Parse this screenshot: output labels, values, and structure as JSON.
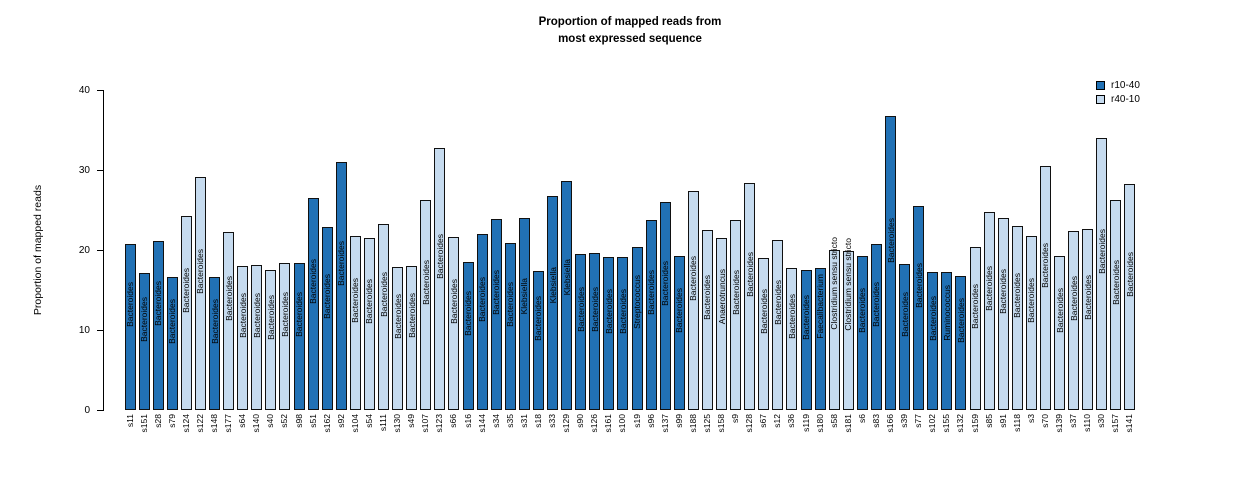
{
  "title": "Proportion of mapped reads from\nmost expressed sequence",
  "y_axis": {
    "label": "Proportion of mapped reads",
    "ticks": [
      0,
      10,
      20,
      30,
      40
    ]
  },
  "legend": [
    {
      "label": "r10-40",
      "color": "#2171b5"
    },
    {
      "label": "r40-10",
      "color": "#c6dbef"
    }
  ],
  "chart_data": {
    "type": "bar",
    "title": "Proportion of mapped reads from most expressed sequence",
    "xlabel": "",
    "ylabel": "Proportion of mapped reads",
    "ylim": [
      0,
      40
    ],
    "grid": false,
    "legend_position": "top-right",
    "series_colors": {
      "r10-40": "#2171b5",
      "r40-10": "#c6dbef"
    },
    "categories": [
      "s11",
      "s151",
      "s28",
      "s79",
      "s124",
      "s122",
      "s148",
      "s177",
      "s64",
      "s140",
      "s40",
      "s52",
      "s98",
      "s51",
      "s162",
      "s92",
      "s104",
      "s54",
      "s111",
      "s130",
      "s49",
      "s107",
      "s123",
      "s66",
      "s16",
      "s144",
      "s34",
      "s35",
      "s31",
      "s18",
      "s33",
      "s129",
      "s90",
      "s126",
      "s161",
      "s100",
      "s19",
      "s96",
      "s137",
      "s99",
      "s188",
      "s125",
      "s158",
      "s9",
      "s128",
      "s67",
      "s12",
      "s36",
      "s119",
      "s180",
      "s58",
      "s181",
      "s6",
      "s83",
      "s166",
      "s39",
      "s77",
      "s102",
      "s155",
      "s132",
      "s159",
      "s85",
      "s91",
      "s118",
      "s3",
      "s70",
      "s139",
      "s37",
      "s110",
      "s30",
      "s157",
      "s141"
    ],
    "values": [
      20.7,
      17.1,
      21.1,
      16.6,
      24.2,
      29.1,
      16.6,
      22.2,
      18.0,
      18.1,
      17.5,
      18.4,
      18.4,
      26.5,
      22.9,
      31.0,
      21.8,
      21.5,
      23.2,
      17.9,
      18.0,
      26.2,
      32.8,
      21.6,
      18.5,
      22.0,
      23.9,
      20.9,
      24.0,
      17.4,
      26.7,
      28.6,
      19.5,
      19.6,
      19.1,
      19.1,
      20.4,
      23.8,
      26.0,
      19.3,
      27.4,
      22.5,
      21.5,
      23.8,
      28.4,
      19.0,
      21.2,
      17.8,
      17.5,
      17.8,
      20.0,
      19.9,
      19.3,
      20.7,
      36.8,
      18.3,
      25.5,
      17.3,
      17.2,
      16.8,
      20.4,
      24.8,
      24.0,
      23.0,
      21.8,
      30.5,
      19.2,
      22.4,
      22.6,
      34.0,
      26.3,
      28.3
    ],
    "groups": [
      "r10-40",
      "r10-40",
      "r10-40",
      "r10-40",
      "r40-10",
      "r40-10",
      "r10-40",
      "r40-10",
      "r40-10",
      "r40-10",
      "r40-10",
      "r40-10",
      "r10-40",
      "r10-40",
      "r10-40",
      "r10-40",
      "r40-10",
      "r40-10",
      "r40-10",
      "r40-10",
      "r40-10",
      "r40-10",
      "r40-10",
      "r40-10",
      "r10-40",
      "r10-40",
      "r10-40",
      "r10-40",
      "r10-40",
      "r10-40",
      "r10-40",
      "r10-40",
      "r10-40",
      "r10-40",
      "r10-40",
      "r10-40",
      "r10-40",
      "r10-40",
      "r10-40",
      "r10-40",
      "r40-10",
      "r40-10",
      "r40-10",
      "r40-10",
      "r40-10",
      "r40-10",
      "r40-10",
      "r40-10",
      "r10-40",
      "r10-40",
      "r40-10",
      "r40-10",
      "r10-40",
      "r10-40",
      "r10-40",
      "r10-40",
      "r10-40",
      "r10-40",
      "r10-40",
      "r10-40",
      "r40-10",
      "r40-10",
      "r40-10",
      "r40-10",
      "r40-10",
      "r40-10",
      "r40-10",
      "r40-10",
      "r40-10",
      "r40-10",
      "r40-10",
      "r40-10"
    ],
    "bar_labels": [
      "Bacteroides",
      "Bacteroides",
      "Bacteroides",
      "Bacteroides",
      "Bacteroides",
      "Bacteroides",
      "Bacteroides",
      "Bacteroides",
      "Bacteroides",
      "Bacteroides",
      "Bacteroides",
      "Bacteroides",
      "Bacteroides",
      "Bacteroides",
      "Bacteroides",
      "Bacteroides",
      "Bacteroides",
      "Bacteroides",
      "Bacteroides",
      "Bacteroides",
      "Bacteroides",
      "Bacteroides",
      "Bacteroides",
      "Bacteroides",
      "Bacteroides",
      "Bacteroides",
      "Bacteroides",
      "Bacteroides",
      "Klebsiella",
      "Bacteroides",
      "Klebsiella",
      "Klebsiella",
      "Bacteroides",
      "Bacteroides",
      "Bacteroides",
      "Bacteroides",
      "Streptococcus",
      "Bacteroides",
      "Bacteroides",
      "Bacteroides",
      "Bacteroides",
      "Bacteroides",
      "Anaerotruncus",
      "Bacteroides",
      "Bacteroides",
      "Bacteroides",
      "Bacteroides",
      "Bacteroides",
      "Bacteroides",
      "Faecalibacterium",
      "Clostridium sensu stricto",
      "Clostridium sensu stricto",
      "Bacteroides",
      "Bacteroides",
      "Bacteroides",
      "Bacteroides",
      "Bacteroides",
      "Bacteroides",
      "Ruminococcus",
      "Bacteroides",
      "Bacteroides",
      "Bacteroides",
      "Bacteroides",
      "Bacteroides",
      "Bacteroides",
      "Bacteroides",
      "Bacteroides",
      "Bacteroides",
      "Bacteroides",
      "Bacteroides",
      "Bacteroides",
      "Bacteroides"
    ]
  }
}
